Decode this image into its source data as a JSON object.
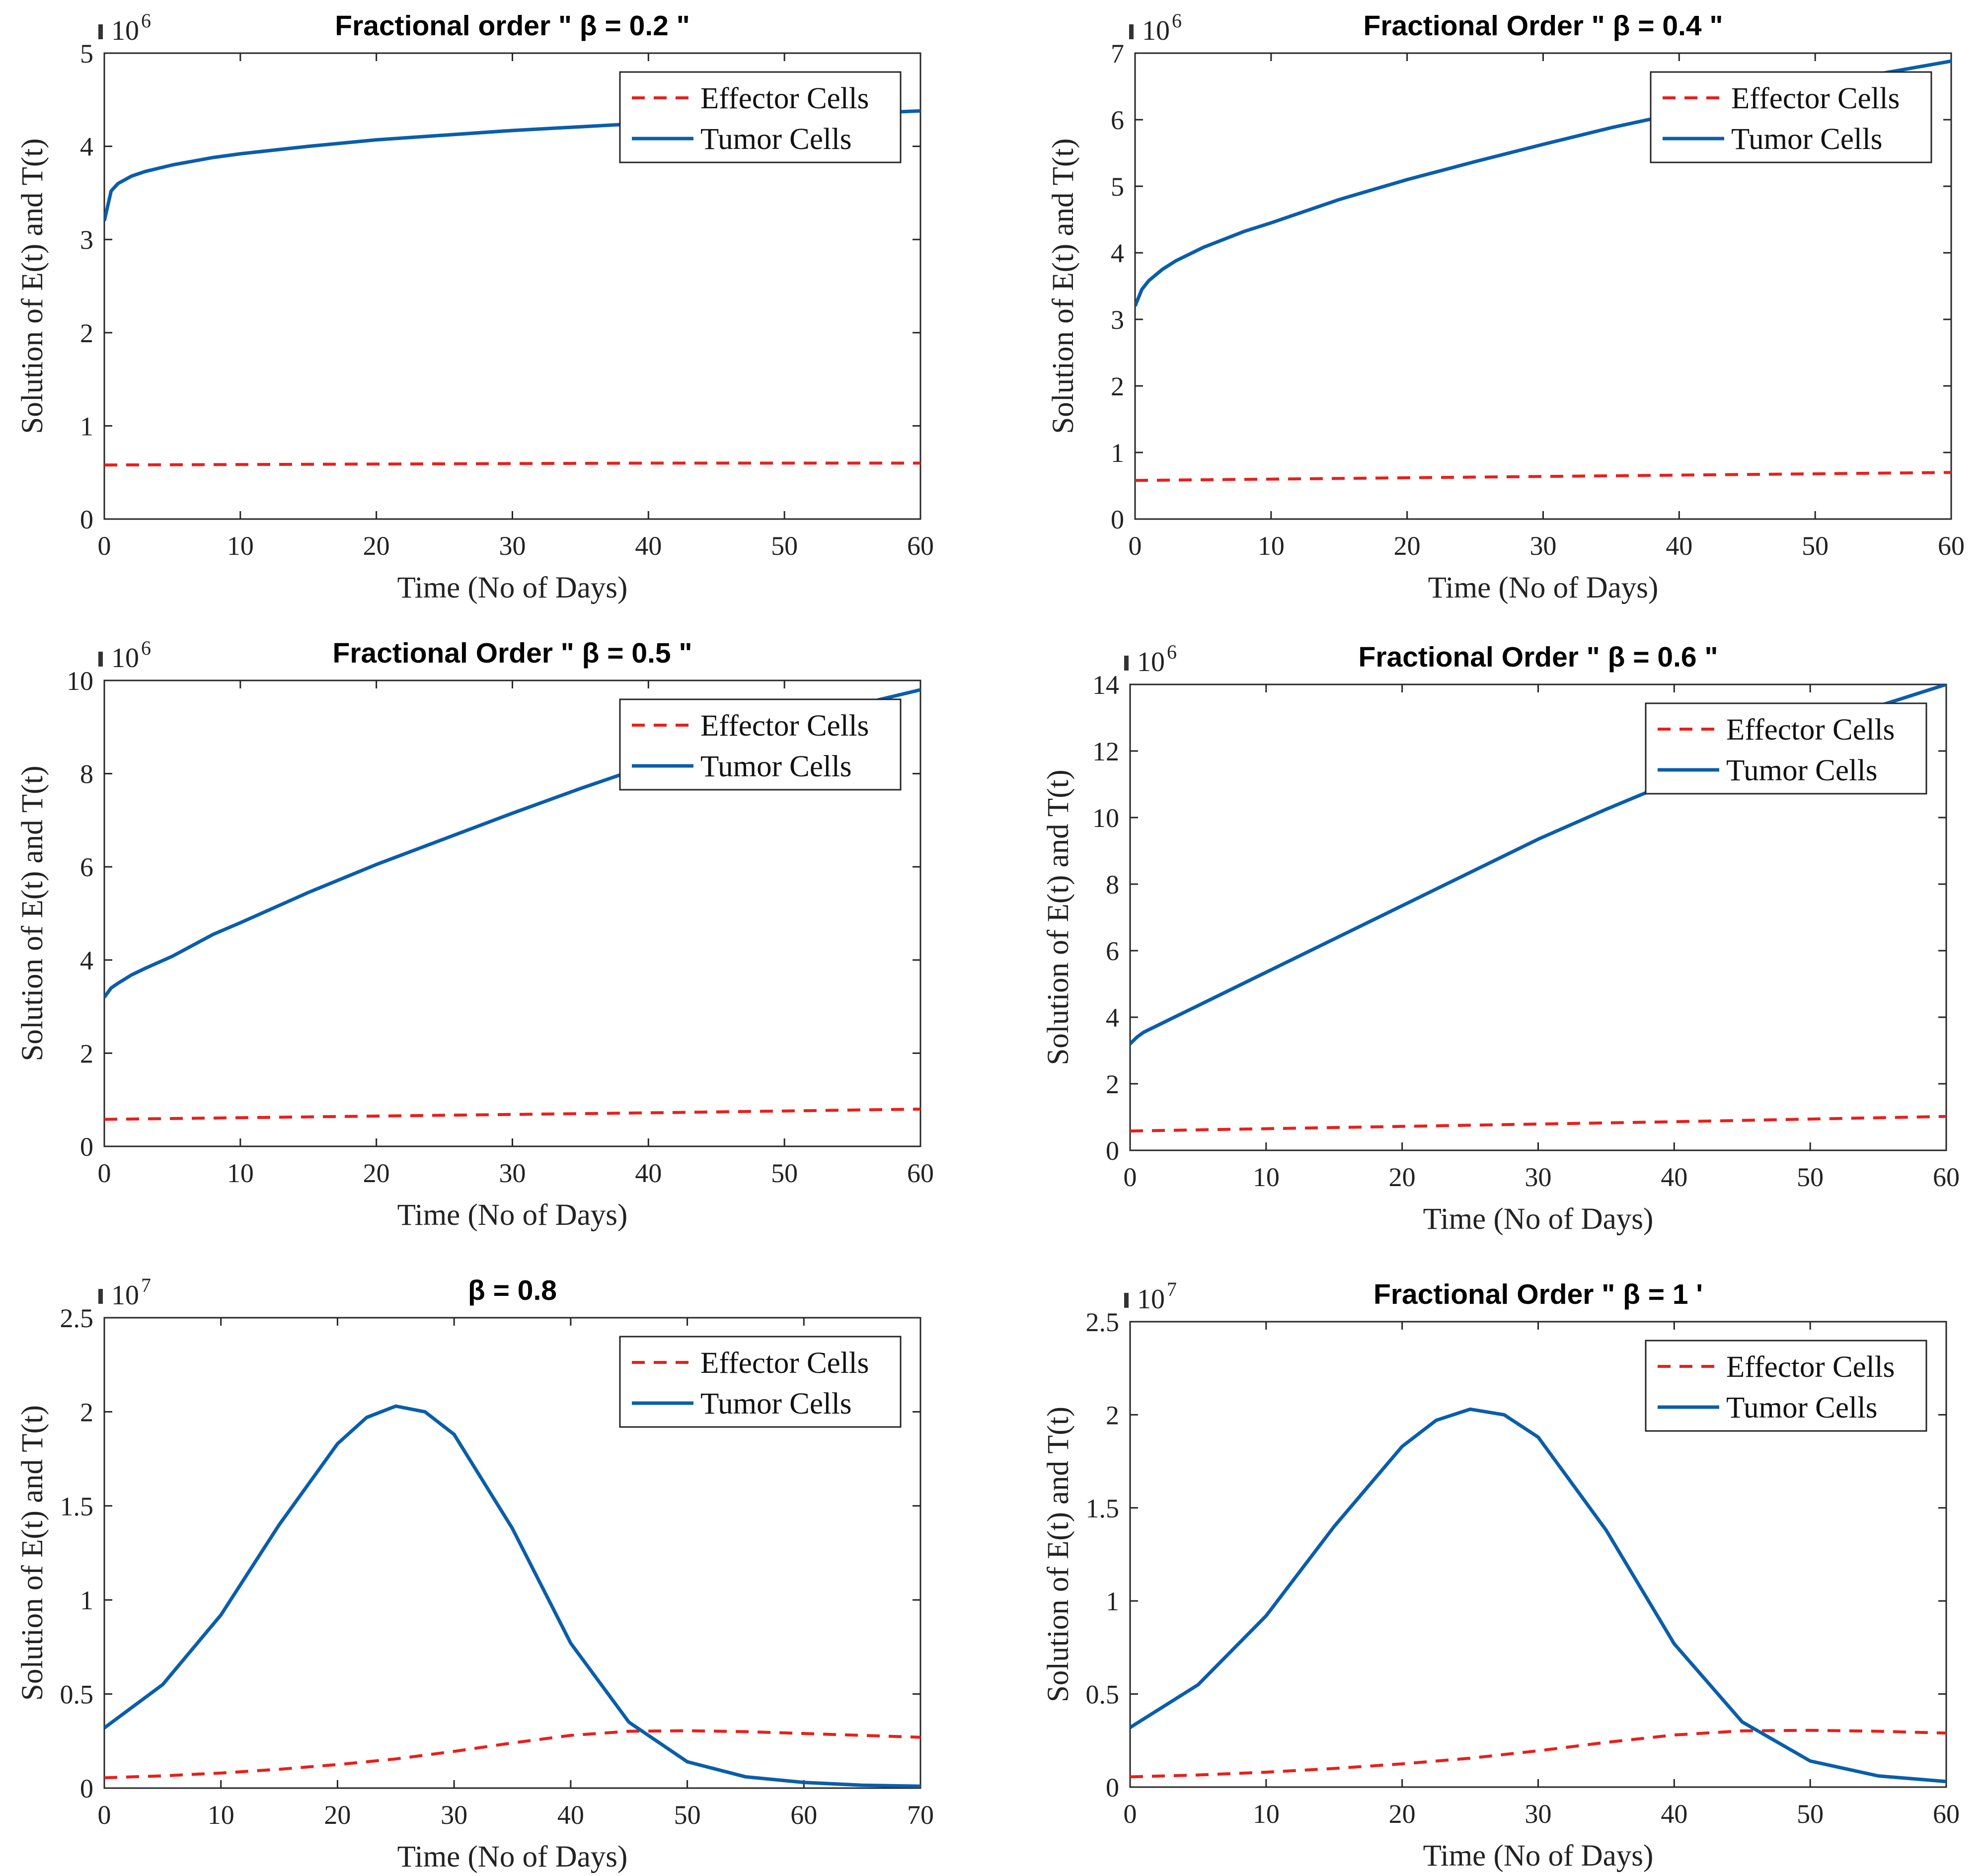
{
  "figure": {
    "background": "#ffffff"
  },
  "colors": {
    "effector": "#e8201c",
    "tumor": "#0a5eaa",
    "axis": "#262626"
  },
  "chart_data": [
    {
      "type": "line",
      "title": "Fractional order \" β = 0.2 \"",
      "xlabel": "Time (No of Days)",
      "ylabel": "Solution of E(t) and T(t)",
      "xlim": [
        0,
        60
      ],
      "ylim": [
        0,
        5
      ],
      "xticks": [
        0,
        10,
        20,
        30,
        40,
        50,
        60
      ],
      "yticks": [
        0,
        1,
        2,
        3,
        4,
        5
      ],
      "exponent_base": "10",
      "exponent_power": "6",
      "legend_position": "top-right",
      "series": [
        {
          "name": "Effector Cells",
          "style": "dashed",
          "x": [
            0,
            20,
            40,
            60
          ],
          "y": [
            0.58,
            0.59,
            0.6,
            0.6
          ]
        },
        {
          "name": "Tumor Cells",
          "style": "solid",
          "x": [
            0,
            0.5,
            1,
            2,
            3,
            5,
            8,
            10,
            15,
            20,
            25,
            30,
            35,
            40,
            45,
            50,
            55,
            60
          ],
          "y": [
            3.2,
            3.52,
            3.6,
            3.68,
            3.73,
            3.8,
            3.88,
            3.92,
            4.0,
            4.07,
            4.12,
            4.17,
            4.21,
            4.25,
            4.29,
            4.32,
            4.35,
            4.38
          ]
        }
      ]
    },
    {
      "type": "line",
      "title": "Fractional Order \" β = 0.4 \"",
      "xlabel": "Time (No of Days)",
      "ylabel": "Solution of E(t) and T(t)",
      "xlim": [
        0,
        60
      ],
      "ylim": [
        0,
        7
      ],
      "xticks": [
        0,
        10,
        20,
        30,
        40,
        50,
        60
      ],
      "yticks": [
        0,
        1,
        2,
        3,
        4,
        5,
        6,
        7
      ],
      "exponent_base": "10",
      "exponent_power": "6",
      "legend_position": "top-right",
      "series": [
        {
          "name": "Effector Cells",
          "style": "dashed",
          "x": [
            0,
            20,
            40,
            60
          ],
          "y": [
            0.58,
            0.62,
            0.66,
            0.7
          ]
        },
        {
          "name": "Tumor Cells",
          "style": "solid",
          "x": [
            0,
            0.5,
            1,
            2,
            3,
            5,
            8,
            10,
            15,
            20,
            25,
            30,
            35,
            40,
            45,
            50,
            55,
            60
          ],
          "y": [
            3.2,
            3.45,
            3.58,
            3.75,
            3.88,
            4.08,
            4.32,
            4.45,
            4.8,
            5.1,
            5.37,
            5.63,
            5.88,
            6.1,
            6.3,
            6.5,
            6.7,
            6.88
          ]
        }
      ]
    },
    {
      "type": "line",
      "title": "Fractional Order \" β = 0.5 \"",
      "xlabel": "Time (No of Days)",
      "ylabel": "Solution of E(t) and T(t)",
      "xlim": [
        0,
        60
      ],
      "ylim": [
        0,
        10
      ],
      "xticks": [
        0,
        10,
        20,
        30,
        40,
        50,
        60
      ],
      "yticks": [
        0,
        2,
        4,
        6,
        8,
        10
      ],
      "exponent_base": "10",
      "exponent_power": "6",
      "legend_position": "top-right",
      "series": [
        {
          "name": "Effector Cells",
          "style": "dashed",
          "x": [
            0,
            20,
            40,
            60
          ],
          "y": [
            0.58,
            0.65,
            0.72,
            0.8
          ]
        },
        {
          "name": "Tumor Cells",
          "style": "solid",
          "x": [
            0,
            0.5,
            1,
            2,
            3,
            5,
            8,
            10,
            15,
            20,
            25,
            30,
            35,
            40,
            45,
            50,
            55,
            60
          ],
          "y": [
            3.2,
            3.4,
            3.5,
            3.68,
            3.82,
            4.08,
            4.55,
            4.8,
            5.45,
            6.05,
            6.6,
            7.15,
            7.68,
            8.18,
            8.65,
            9.1,
            9.45,
            9.8
          ]
        }
      ]
    },
    {
      "type": "line",
      "title": "Fractional Order \" β = 0.6 \"",
      "xlabel": "Time (No of Days)",
      "ylabel": "Solution of E(t) and T(t)",
      "xlim": [
        0,
        60
      ],
      "ylim": [
        0,
        14
      ],
      "xticks": [
        0,
        10,
        20,
        30,
        40,
        50,
        60
      ],
      "yticks": [
        0,
        2,
        4,
        6,
        8,
        10,
        12,
        14
      ],
      "exponent_base": "10",
      "exponent_power": "6",
      "legend_position": "top-right",
      "series": [
        {
          "name": "Effector Cells",
          "style": "dashed",
          "x": [
            0,
            20,
            40,
            60
          ],
          "y": [
            0.58,
            0.72,
            0.86,
            1.02
          ]
        },
        {
          "name": "Tumor Cells",
          "style": "solid",
          "x": [
            0,
            0.5,
            1,
            2,
            3,
            5,
            8,
            10,
            15,
            20,
            25,
            30,
            35,
            40,
            45,
            50,
            55,
            60
          ],
          "y": [
            3.2,
            3.4,
            3.55,
            3.75,
            3.95,
            4.35,
            4.95,
            5.35,
            6.35,
            7.35,
            8.35,
            9.35,
            10.25,
            11.1,
            11.95,
            12.7,
            13.35,
            14.0
          ]
        }
      ]
    },
    {
      "type": "line",
      "title": "β = 0.8",
      "xlabel": "Time (No of Days)",
      "ylabel": "Solution of E(t) and T(t)",
      "xlim": [
        0,
        70
      ],
      "ylim": [
        0,
        2.5
      ],
      "xticks": [
        0,
        10,
        20,
        30,
        40,
        50,
        60,
        70
      ],
      "yticks": [
        0,
        0.5,
        1,
        1.5,
        2,
        2.5
      ],
      "ytick_labels": [
        "0",
        "0.5",
        "1",
        "1.5",
        "2",
        "2.5"
      ],
      "exponent_base": "10",
      "exponent_power": "7",
      "legend_position": "top-right",
      "series": [
        {
          "name": "Effector Cells",
          "style": "dashed",
          "x": [
            0,
            5,
            10,
            15,
            20,
            25,
            30,
            35,
            40,
            45,
            50,
            55,
            60,
            65,
            70
          ],
          "y": [
            0.055,
            0.065,
            0.08,
            0.1,
            0.125,
            0.155,
            0.195,
            0.24,
            0.28,
            0.302,
            0.305,
            0.3,
            0.29,
            0.28,
            0.27
          ]
        },
        {
          "name": "Tumor Cells",
          "style": "solid",
          "x": [
            0,
            5,
            10,
            15,
            20,
            22.5,
            25,
            27.5,
            30,
            35,
            40,
            45,
            50,
            55,
            60,
            65,
            70
          ],
          "y": [
            0.32,
            0.55,
            0.92,
            1.4,
            1.83,
            1.97,
            2.03,
            2.0,
            1.88,
            1.38,
            0.77,
            0.35,
            0.14,
            0.06,
            0.03,
            0.015,
            0.01
          ]
        }
      ]
    },
    {
      "type": "line",
      "title": "Fractional Order \" β = 1 '",
      "xlabel": "Time (No of Days)",
      "ylabel": "Solution of E(t) and T(t)",
      "xlim": [
        0,
        60
      ],
      "ylim": [
        0,
        2.5
      ],
      "xticks": [
        0,
        10,
        20,
        30,
        40,
        50,
        60
      ],
      "yticks": [
        0,
        0.5,
        1,
        1.5,
        2,
        2.5
      ],
      "ytick_labels": [
        "0",
        "0.5",
        "1",
        "1.5",
        "2",
        "2.5"
      ],
      "exponent_base": "10",
      "exponent_power": "7",
      "legend_position": "top-right",
      "series": [
        {
          "name": "Effector Cells",
          "style": "dashed",
          "x": [
            0,
            5,
            10,
            15,
            20,
            25,
            30,
            35,
            40,
            45,
            50,
            55,
            60
          ],
          "y": [
            0.055,
            0.065,
            0.08,
            0.1,
            0.125,
            0.155,
            0.195,
            0.24,
            0.28,
            0.302,
            0.305,
            0.3,
            0.29
          ]
        },
        {
          "name": "Tumor Cells",
          "style": "solid",
          "x": [
            0,
            5,
            10,
            15,
            20,
            22.5,
            25,
            27.5,
            30,
            35,
            40,
            45,
            50,
            55,
            60
          ],
          "y": [
            0.32,
            0.55,
            0.92,
            1.4,
            1.83,
            1.97,
            2.03,
            2.0,
            1.88,
            1.38,
            0.77,
            0.35,
            0.14,
            0.06,
            0.03
          ]
        }
      ]
    }
  ]
}
